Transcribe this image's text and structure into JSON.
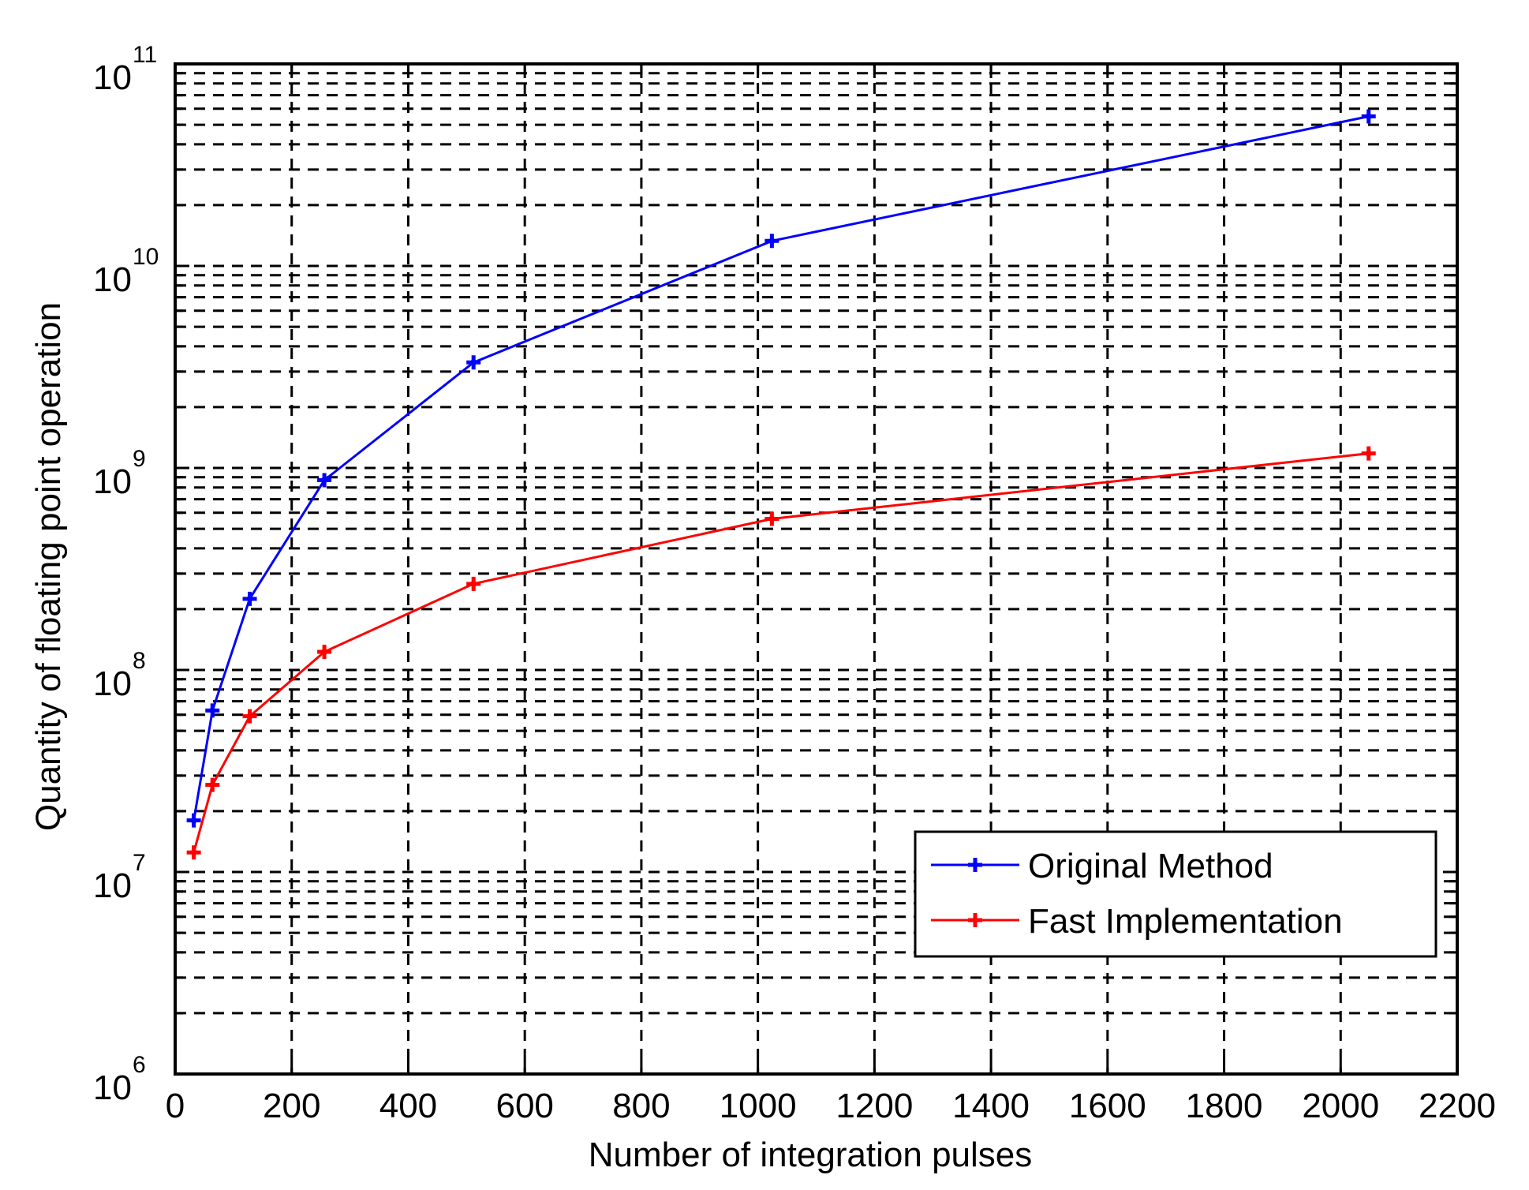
{
  "chart_data": {
    "type": "line",
    "title": "",
    "xlabel": "Number of integration pulses",
    "ylabel": "Quantity of floating point operation",
    "xscale": "linear",
    "yscale": "log",
    "xlim": [
      0,
      2200
    ],
    "ylim": [
      1000000,
      100000000000
    ],
    "xticks": [
      0,
      200,
      400,
      600,
      800,
      1000,
      1200,
      1400,
      1600,
      1800,
      2000,
      2200
    ],
    "xtick_labels": [
      "0",
      "200",
      "400",
      "600",
      "800",
      "1000",
      "1200",
      "1400",
      "1600",
      "1800",
      "2000",
      "2200"
    ],
    "yticks": [
      1000000,
      10000000,
      100000000,
      1000000000,
      10000000000,
      100000000000
    ],
    "ytick_labels": [
      {
        "base": "10",
        "exp": "6"
      },
      {
        "base": "10",
        "exp": "7"
      },
      {
        "base": "10",
        "exp": "8"
      },
      {
        "base": "10",
        "exp": "9"
      },
      {
        "base": "10",
        "exp": "10"
      },
      {
        "base": "10",
        "exp": "11"
      }
    ],
    "grid": true,
    "grid_style": "dashed (major + minor)",
    "legend_position": "lower right",
    "x": [
      32,
      64,
      128,
      256,
      512,
      1024,
      2048
    ],
    "series": [
      {
        "name": "Original Method",
        "color": "#0000ff",
        "marker": "+",
        "values": [
          18000000,
          63000000,
          225000000,
          870000000,
          3330000000,
          13300000000,
          55000000000
        ]
      },
      {
        "name": "Fast Implementation",
        "color": "#ff0000",
        "marker": "+",
        "values": [
          12500000,
          27000000,
          59000000,
          123000000,
          267000000,
          560000000,
          1180000000
        ]
      }
    ]
  },
  "legend": {
    "items": [
      {
        "label": "Original Method",
        "color": "#0000ff"
      },
      {
        "label": "Fast Implementation",
        "color": "#ff0000"
      }
    ]
  }
}
